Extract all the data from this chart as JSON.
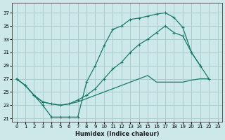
{
  "xlabel": "Humidex (Indice chaleur)",
  "background_color": "#cce8e8",
  "grid_color": "#aacccc",
  "line_color": "#1a7a6a",
  "x_ticks": [
    0,
    1,
    2,
    3,
    4,
    5,
    6,
    7,
    8,
    9,
    10,
    11,
    12,
    13,
    14,
    15,
    16,
    17,
    18,
    19,
    20,
    21,
    22,
    23
  ],
  "y_ticks": [
    21,
    23,
    25,
    27,
    29,
    31,
    33,
    35,
    37
  ],
  "xlim": [
    -0.5,
    23.5
  ],
  "ylim": [
    20.5,
    38.5
  ],
  "series_top_x": [
    0,
    1,
    2,
    3,
    4,
    5,
    6,
    7,
    8,
    9,
    10,
    11,
    12,
    13,
    14,
    15,
    16,
    17,
    18,
    19,
    20,
    21
  ],
  "series_top_y": [
    27,
    26,
    24.5,
    23,
    21.2,
    21.2,
    21.2,
    21.2,
    26.5,
    29.0,
    32.0,
    34.5,
    35.0,
    36.0,
    36.2,
    36.5,
    36.8,
    37.0,
    36.3,
    34.8,
    31.0,
    29.0
  ],
  "series_mid_x": [
    0,
    1,
    2,
    3,
    4,
    5,
    6,
    7,
    8,
    9,
    10,
    11,
    12,
    13,
    14,
    15,
    16,
    17,
    18,
    19,
    20,
    21,
    22
  ],
  "series_mid_y": [
    27,
    26,
    24.5,
    23.5,
    23.2,
    23.0,
    23.2,
    23.8,
    24.5,
    25.5,
    27.0,
    28.5,
    29.5,
    31.0,
    32.2,
    33.0,
    34.0,
    35.0,
    34.0,
    33.5,
    31.0,
    29.0,
    27.0
  ],
  "series_bot_x": [
    0,
    1,
    2,
    3,
    4,
    5,
    6,
    7,
    8,
    9,
    10,
    11,
    12,
    13,
    14,
    15,
    16,
    17,
    18,
    19,
    20,
    21,
    22
  ],
  "series_bot_y": [
    27,
    26,
    24.5,
    23.5,
    23.2,
    23.0,
    23.2,
    23.5,
    24.0,
    24.5,
    25.0,
    25.5,
    26.0,
    26.5,
    27.0,
    27.5,
    26.5,
    26.5,
    26.5,
    26.5,
    26.8,
    27.0,
    27.0
  ]
}
